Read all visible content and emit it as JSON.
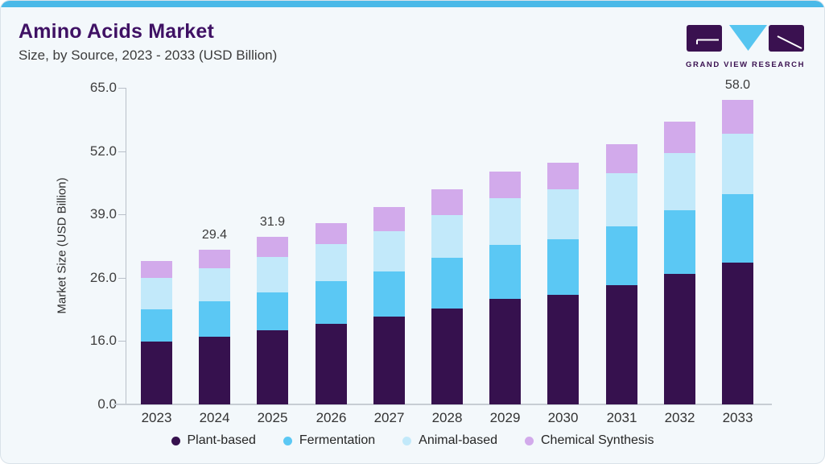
{
  "header": {
    "title": "Amino Acids Market",
    "subtitle": "Size, by Source, 2023 - 2033 (USD Billion)",
    "logo_text": "GRAND VIEW RESEARCH"
  },
  "chart_data": {
    "type": "bar",
    "stacked": true,
    "title": "Amino Acids Market Size, by Source, 2023 - 2033 (USD Billion)",
    "xlabel": "",
    "ylabel": "Market Size (USD Billion)",
    "categories": [
      "2023",
      "2024",
      "2025",
      "2026",
      "2027",
      "2028",
      "2029",
      "2030",
      "2031",
      "2032",
      "2033"
    ],
    "series": [
      {
        "name": "Plant-based",
        "color": "#36114e",
        "values": [
          12.0,
          12.9,
          14.1,
          15.3,
          16.7,
          18.3,
          20.1,
          20.9,
          22.7,
          24.9,
          27.0
        ]
      },
      {
        "name": "Fermentation",
        "color": "#5bc8f4",
        "values": [
          6.1,
          6.7,
          7.2,
          8.1,
          8.6,
          9.7,
          10.3,
          10.6,
          11.2,
          12.0,
          13.0
        ]
      },
      {
        "name": "Animal-based",
        "color": "#c2e9fa",
        "values": [
          6.0,
          6.3,
          6.8,
          7.1,
          7.7,
          8.1,
          8.9,
          9.4,
          10.1,
          10.9,
          11.5
        ]
      },
      {
        "name": "Chemical Synthesis",
        "color": "#d2aaeb",
        "values": [
          3.2,
          3.5,
          3.8,
          4.1,
          4.6,
          4.8,
          5.1,
          5.1,
          5.5,
          6.0,
          6.5
        ]
      }
    ],
    "totals_labeled": [
      {
        "category": "2024",
        "label": "29.4"
      },
      {
        "category": "2025",
        "label": "31.9"
      },
      {
        "category": "2033",
        "label": "58.0"
      }
    ],
    "y_ticks": [
      "0.0",
      "16.0",
      "26.0",
      "39.0",
      "52.0",
      "65.0"
    ],
    "ylim": [
      0,
      65
    ],
    "grid": false,
    "legend_position": "bottom"
  },
  "colors": {
    "accent_topbar": "#4ab9e8",
    "title_purple": "#3f1164",
    "card_bg": "#f3f8fb",
    "axis_gray": "#b9c0c9",
    "logo_purple": "#3a1150",
    "logo_blue": "#56c5f0"
  }
}
